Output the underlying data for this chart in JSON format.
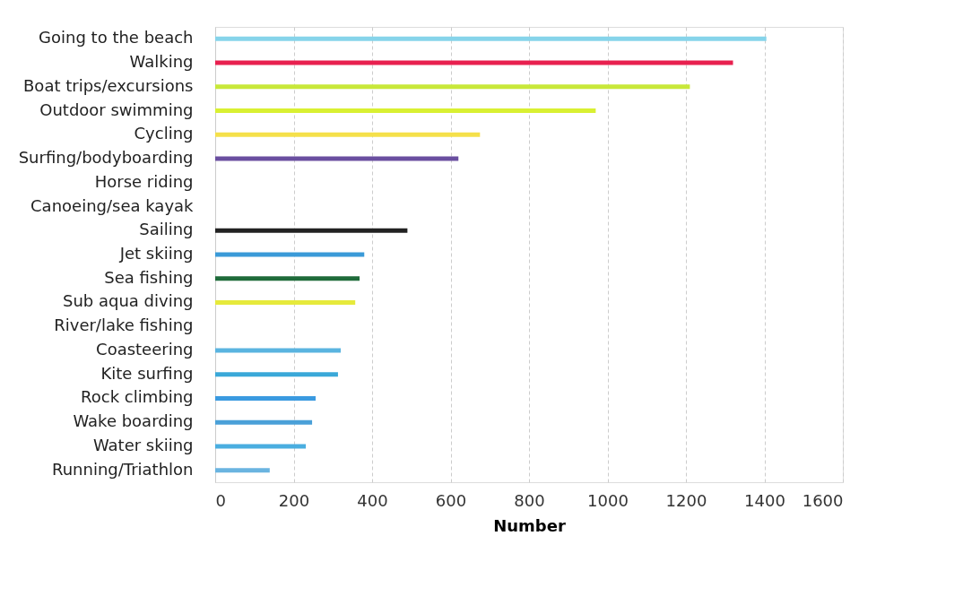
{
  "chart_data": {
    "type": "bar",
    "orientation": "horizontal",
    "xlabel": "Number",
    "categories": [
      "Going to the beach",
      "Walking",
      "Boat trips/excursions",
      "Outdoor swimming",
      "Cycling",
      "Surfing/bodyboarding",
      "Horse riding",
      "Canoeing/sea kayak",
      "Sailing",
      "Jet skiing",
      "Sea fishing",
      "Sub aqua diving",
      "River/lake fishing",
      "Coasteering",
      "Kite surfing",
      "Rock climbing",
      "Wake boarding",
      "Water skiing",
      "Running/Triathlon"
    ],
    "values": [
      1405,
      1320,
      1210,
      970,
      675,
      620,
      null,
      null,
      490,
      380,
      368,
      357,
      null,
      320,
      313,
      256,
      247,
      231,
      139
    ],
    "colors": [
      "#86d4ea",
      "#e8204f",
      "#c8e83a",
      "#d9f032",
      "#f5e04a",
      "#6a4fa0",
      "#ffffff",
      "#ffffff",
      "#222222",
      "#3a9ad8",
      "#1f6b3a",
      "#e6ea3c",
      "#ffffff",
      "#5ab4e0",
      "#3aa8d8",
      "#3a9ae0",
      "#4aa0d8",
      "#4aaee0",
      "#6ab4e0"
    ],
    "xlim": [
      0,
      1600
    ],
    "xticks": [
      0,
      200,
      400,
      600,
      800,
      1000,
      1200,
      1400,
      1600
    ],
    "grid": "x"
  }
}
